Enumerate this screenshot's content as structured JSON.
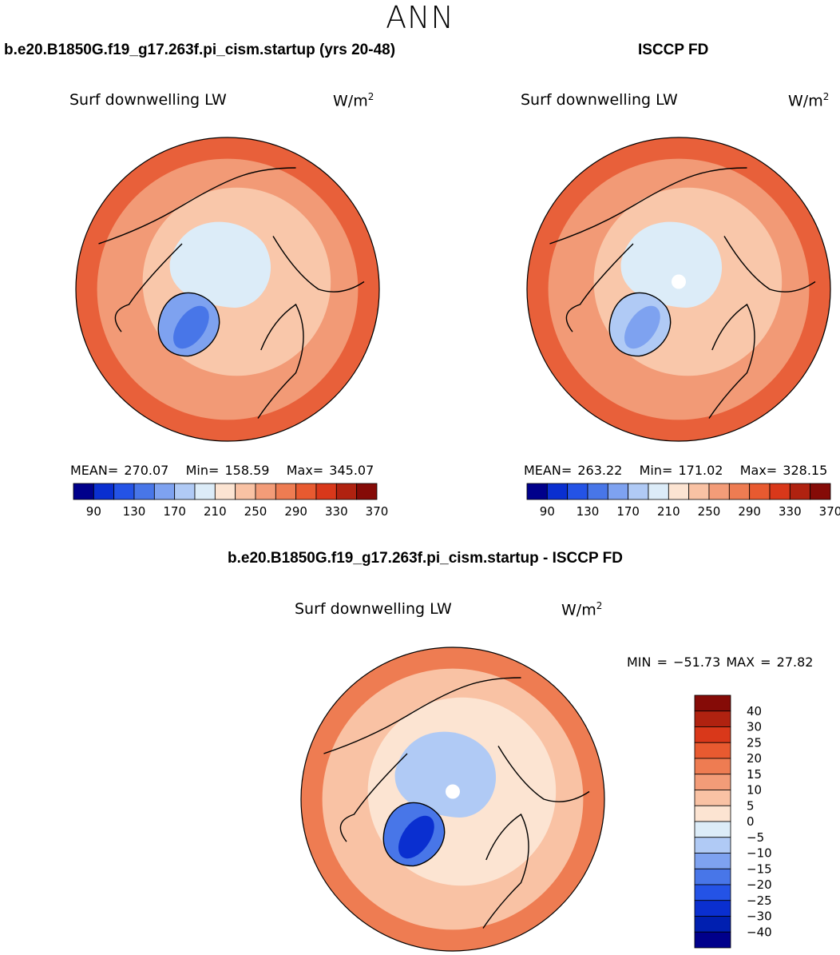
{
  "season": "ANN",
  "panels": [
    {
      "title": "b.e20.B1850G.f19_g17.263f.pi_cism.startup (yrs 20-48)",
      "variable": "Surf downwelling LW",
      "units_base": "W/m",
      "units_sup": "2",
      "stats": {
        "mean_label": "MEAN=",
        "mean": "270.07",
        "min_label": "Min=",
        "min": "158.59",
        "max_label": "Max=",
        "max": "345.07"
      }
    },
    {
      "title": "ISCCP FD",
      "variable": "Surf downwelling LW",
      "units_base": "W/m",
      "units_sup": "2",
      "stats": {
        "mean_label": "MEAN=",
        "mean": "263.22",
        "min_label": "Min=",
        "min": "171.02",
        "max_label": "Max=",
        "max": "328.15"
      }
    },
    {
      "title": "b.e20.B1850G.f19_g17.263f.pi_cism.startup - ISCCP FD",
      "variable": "Surf downwelling LW",
      "units_base": "W/m",
      "units_sup": "2",
      "minmax": "MIN = −51.73 MAX =  27.82"
    }
  ],
  "chart_data": [
    {
      "type": "heatmap",
      "projection": "north-polar-stereographic",
      "title": "b.e20.B1850G.f19_g17.263f.pi_cism.startup (yrs 20-48)",
      "variable": "Surf downwelling LW",
      "units": "W/m2",
      "mean": 270.07,
      "min": 158.59,
      "max": 345.07,
      "colorbar_ticks": [
        "90",
        "130",
        "170",
        "210",
        "250",
        "290",
        "330",
        "370"
      ],
      "colorbar_colors": [
        "#00008b",
        "#0a2fd0",
        "#2453e6",
        "#4876e8",
        "#7ea2f0",
        "#b0caf5",
        "#dcecf8",
        "#fce4d2",
        "#f9c2a4",
        "#f39c78",
        "#ee7c52",
        "#e85a30",
        "#d9381a",
        "#b02210",
        "#850b07"
      ],
      "field_colors": {
        "subtropics": "#e8603a",
        "midlatitudes": "#f29a76",
        "high_latitudes": "#f9c7aa",
        "arctic_ocean": "#dcecf8",
        "greenland": "#7ea2f0",
        "greenland_core": "#4876e8"
      }
    },
    {
      "type": "heatmap",
      "projection": "north-polar-stereographic",
      "title": "ISCCP FD",
      "variable": "Surf downwelling LW",
      "units": "W/m2",
      "mean": 263.22,
      "min": 171.02,
      "max": 328.15,
      "colorbar_ticks": [
        "90",
        "130",
        "170",
        "210",
        "250",
        "290",
        "330",
        "370"
      ],
      "colorbar_colors": [
        "#00008b",
        "#0a2fd0",
        "#2453e6",
        "#4876e8",
        "#7ea2f0",
        "#b0caf5",
        "#dcecf8",
        "#fce4d2",
        "#f9c2a4",
        "#f39c78",
        "#ee7c52",
        "#e85a30",
        "#d9381a",
        "#b02210",
        "#850b07"
      ],
      "field_colors": {
        "subtropics": "#e8603a",
        "midlatitudes": "#f29a76",
        "high_latitudes": "#f9c7aa",
        "arctic_ocean": "#dcecf8",
        "greenland": "#b0caf5",
        "greenland_core": "#7ea2f0"
      }
    },
    {
      "type": "heatmap",
      "projection": "north-polar-stereographic",
      "title": "b.e20.B1850G.f19_g17.263f.pi_cism.startup - ISCCP FD",
      "variable": "Surf downwelling LW",
      "units": "W/m2",
      "min": -51.73,
      "max": 27.82,
      "colorbar_ticks": [
        "40",
        "30",
        "25",
        "20",
        "15",
        "10",
        "5",
        "0",
        "−5",
        "−10",
        "−15",
        "−20",
        "−25",
        "−30",
        "−40"
      ],
      "colorbar_colors": [
        "#850b07",
        "#b02210",
        "#d9381a",
        "#e85a30",
        "#ee7c52",
        "#f39c78",
        "#f9c2a4",
        "#fce4d2",
        "#dcecf8",
        "#b0caf5",
        "#7ea2f0",
        "#4876e8",
        "#2453e6",
        "#0a2fd0",
        "#001fb0",
        "#00008b"
      ],
      "field_colors": {
        "subtropics": "#ee7c52",
        "midlatitudes": "#f9c2a4",
        "high_latitudes": "#fce4d2",
        "arctic_ocean": "#b0caf5",
        "greenland": "#4876e8",
        "greenland_core": "#0a2fd0"
      }
    }
  ]
}
